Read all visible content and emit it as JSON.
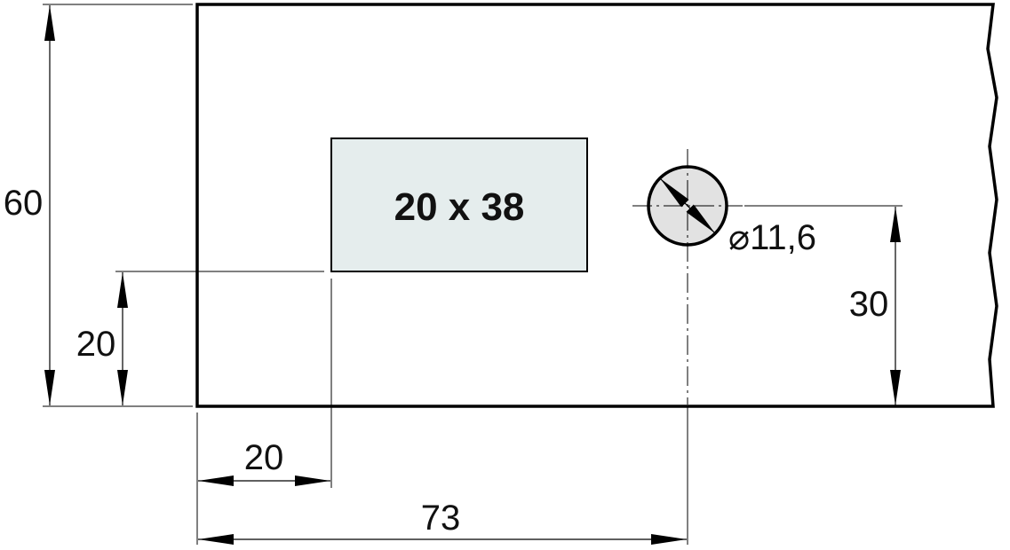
{
  "colors": {
    "outline": "#000000",
    "cutout_fill": "#e5eded",
    "hole_fill": "#e2e2e2",
    "text": "#111111"
  },
  "cutout": {
    "label": "20 x 38"
  },
  "hole": {
    "diameter_label": "⌀11,6"
  },
  "dimensions": {
    "overall_height": "60",
    "cutout_bottom_offset": "20",
    "cutout_left_offset": "20",
    "hole_center_x": "73",
    "hole_center_height": "30"
  }
}
